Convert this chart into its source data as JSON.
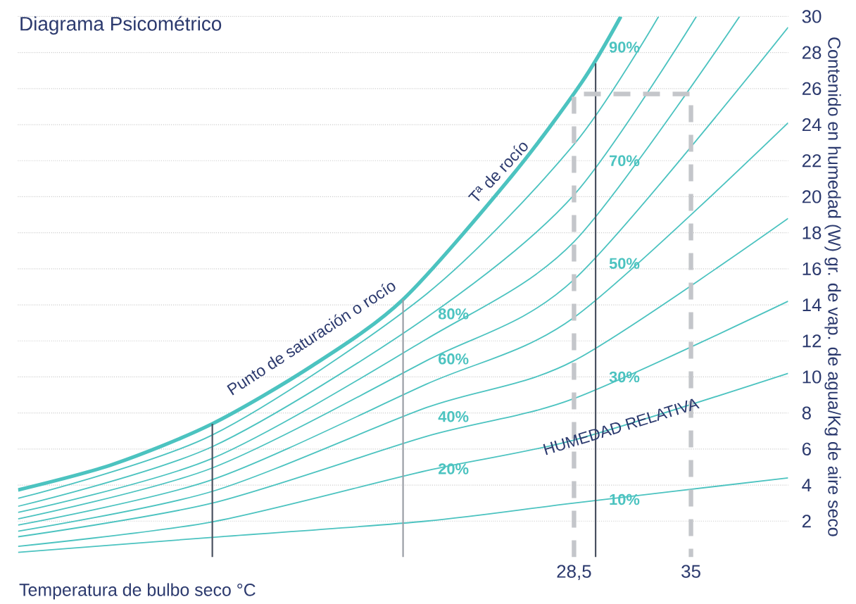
{
  "chart_data": {
    "type": "line",
    "title": "Diagrama Psicométrico",
    "xlabel": "Temperatura de bulbo seco °C",
    "ylabel": "Contenido en humedad (W) gr. de vap. de agua/Kg de aire seco",
    "xlim": [
      -2.4,
      40.4
    ],
    "ylim": [
      0,
      30
    ],
    "xticks": [
      {
        "value": 28.5,
        "label": "28,5"
      },
      {
        "value": 35,
        "label": "35"
      }
    ],
    "yticks": [
      2,
      4,
      6,
      8,
      10,
      12,
      14,
      16,
      18,
      20,
      22,
      24,
      26,
      28,
      30
    ],
    "grid": "y",
    "annotations": [
      "Punto de saturación o rocío",
      "Tª de rocío",
      "HUMEDAD RELATIVA"
    ],
    "series": [
      {
        "color": "#4cc3c0",
        "x": [
          -2.4,
          2.9,
          8.4,
          14.0,
          19.0,
          25.0,
          28.9,
          31.1
        ],
        "values": [
          3.73,
          5.16,
          7.4,
          10.65,
          14.3,
          21.1,
          26.3,
          30
        ]
      },
      {
        "name": "90%",
        "color": "#4cc3c0",
        "x": [
          -2.4,
          8.4,
          20.3,
          28.5,
          33.2
        ],
        "values": [
          3.26,
          6.78,
          14.6,
          22.9,
          30
        ]
      },
      {
        "name": "80%",
        "color": "#4cc3c0",
        "x": [
          -2.4,
          8.4,
          20.3,
          28.5,
          35.3
        ],
        "values": [
          2.82,
          6.13,
          13.3,
          20.1,
          30
        ]
      },
      {
        "name": "70%",
        "color": "#4cc3c0",
        "x": [
          -2.4,
          8.4,
          20.3,
          28.5,
          37.7
        ],
        "values": [
          2.48,
          5.48,
          12.1,
          17.5,
          30
        ]
      },
      {
        "name": "60%",
        "color": "#4cc3c0",
        "x": [
          -2.4,
          8.4,
          20.3,
          28.5,
          40.4
        ],
        "values": [
          2.12,
          4.95,
          10.9,
          15.4,
          29.4
        ]
      },
      {
        "name": "50%",
        "color": "#4cc3c0",
        "x": [
          -2.4,
          8.4,
          20.3,
          28.5,
          40.4
        ],
        "values": [
          1.78,
          4.3,
          9.6,
          13.3,
          24.1
        ]
      },
      {
        "name": "40%",
        "color": "#4cc3c0",
        "x": [
          -2.4,
          8.4,
          20.3,
          28.5,
          40.4
        ],
        "values": [
          1.44,
          3.65,
          8.3,
          10.9,
          18.8
        ]
      },
      {
        "name": "30%",
        "color": "#4cc3c0",
        "x": [
          -2.4,
          8.4,
          20.3,
          28.5,
          40.4
        ],
        "values": [
          1.13,
          3.0,
          6.7,
          8.8,
          14.2
        ]
      },
      {
        "name": "20%",
        "color": "#4cc3c0",
        "x": [
          -2.4,
          8.4,
          20.3,
          28.5,
          40.4
        ],
        "values": [
          0.6,
          1.96,
          4.8,
          6.5,
          10.2
        ]
      },
      {
        "name": "10%",
        "color": "#4cc3c0",
        "x": [
          -2.4,
          8.4,
          20.3,
          28.5,
          40.4
        ],
        "values": [
          0.27,
          1.1,
          2.0,
          3.0,
          4.4
        ]
      },
      {
        "color": "#4a5160",
        "x": [
          8.4,
          8.4
        ],
        "values": [
          0,
          7.4
        ]
      },
      {
        "color": "#9a9ea6",
        "x": [
          19.0,
          19.0
        ],
        "values": [
          0,
          14.3
        ]
      },
      {
        "color": "#4a5160",
        "x": [
          29.7,
          29.7
        ],
        "values": [
          0,
          27.4
        ]
      },
      {
        "color": "#c4c6ca",
        "line_style": "dashed",
        "x": [
          28.5,
          28.5,
          35,
          35
        ],
        "values": [
          0,
          25.7,
          25.7,
          0
        ]
      }
    ]
  }
}
